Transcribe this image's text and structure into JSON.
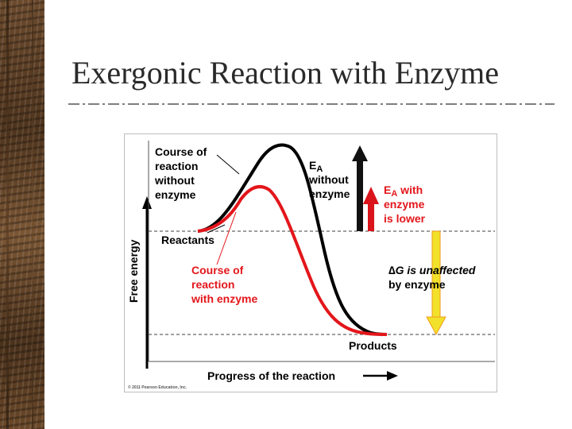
{
  "slide": {
    "title": "Exergonic Reaction with Enzyme"
  },
  "diagram": {
    "axis_y_label": "Free energy",
    "axis_x_label": "Progress of the reaction",
    "course_without": [
      "Course of",
      "reaction",
      "without",
      "enzyme"
    ],
    "course_with": [
      "Course of",
      "reaction",
      "with enzyme"
    ],
    "reactants_label": "Reactants",
    "products_label": "Products",
    "ea_without_main": "E",
    "ea_without_sub": "A",
    "ea_without_rest": [
      "without",
      "enzyme"
    ],
    "ea_with_main": "E",
    "ea_with_sub": "A",
    "ea_with_word": " with",
    "ea_with_rest": [
      "enzyme",
      "is lower"
    ],
    "delta_g_symbol": "∆",
    "delta_g_main": "G is unaffected",
    "delta_g_rest": "by enzyme",
    "copyright": "© 2011 Pearson Education, Inc."
  },
  "colors": {
    "curve_without": "#000000",
    "curve_with": "#e3161b",
    "ea_arrow_black": "#111111",
    "ea_arrow_red": "#d9141b",
    "delta_g_arrow": "#f1e12a",
    "delta_g_arrow_edge": "#f29a1a"
  }
}
